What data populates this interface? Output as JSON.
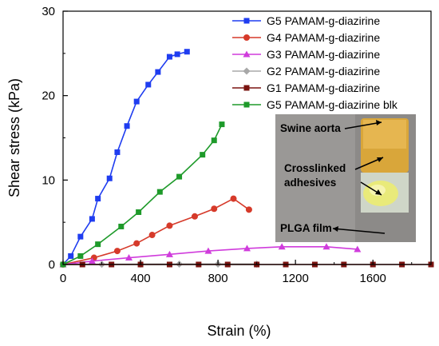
{
  "chart_data": {
    "type": "line",
    "xlabel": "Strain (%)",
    "ylabel": "Shear stress (kPa)",
    "xlim": [
      0,
      1900
    ],
    "ylim": [
      0,
      30
    ],
    "xticks": [
      0,
      400,
      800,
      1200,
      1600
    ],
    "yticks": [
      0,
      10,
      20,
      30
    ],
    "x_tick_labels": [
      "0",
      "400",
      "800",
      "1200",
      "1600"
    ],
    "y_tick_labels": [
      "0",
      "10",
      "20",
      "30"
    ],
    "grid": false,
    "legend_position": "top-right",
    "series": [
      {
        "name": "G5 PAMAM-g-diazirine",
        "color": "#1f3df0",
        "marker": "square",
        "x": [
          0,
          40,
          90,
          150,
          180,
          240,
          280,
          330,
          380,
          440,
          490,
          550,
          590,
          640
        ],
        "y": [
          0,
          1.0,
          3.3,
          5.4,
          7.8,
          10.2,
          13.3,
          16.4,
          19.3,
          21.3,
          22.8,
          24.6,
          24.9,
          25.2
        ]
      },
      {
        "name": "G4 PAMAM-g-diazirine",
        "color": "#d63a2a",
        "marker": "circle",
        "x": [
          0,
          160,
          280,
          380,
          460,
          550,
          680,
          780,
          880,
          960
        ],
        "y": [
          0,
          0.8,
          1.6,
          2.5,
          3.5,
          4.6,
          5.7,
          6.6,
          7.8,
          6.5
        ]
      },
      {
        "name": "G3 PAMAM-g-diazirine",
        "color": "#d03cdc",
        "marker": "triangle",
        "x": [
          0,
          150,
          340,
          550,
          750,
          950,
          1130,
          1360,
          1520
        ],
        "y": [
          0,
          0.4,
          0.8,
          1.2,
          1.6,
          1.9,
          2.1,
          2.1,
          1.8
        ]
      },
      {
        "name": "G2 PAMAM-g-diazirine",
        "color": "#a8a8a8",
        "marker": "diamond",
        "x": [
          0,
          200,
          400,
          600,
          800,
          1000
        ],
        "y": [
          0,
          0.02,
          0.04,
          0.05,
          0.05,
          0.05
        ]
      },
      {
        "name": "G1 PAMAM-g-diazirine",
        "color": "#7a1410",
        "marker": "square",
        "x": [
          0,
          100,
          250,
          400,
          550,
          700,
          850,
          1000,
          1150,
          1300,
          1450,
          1600,
          1750,
          1900
        ],
        "y": [
          0,
          0,
          0,
          0,
          0,
          0,
          0,
          0,
          0,
          0,
          0,
          0,
          0,
          0
        ]
      },
      {
        "name": "G5 PAMAM-g-diazirine blk",
        "color": "#1e9a2a",
        "marker": "square",
        "x": [
          0,
          90,
          180,
          300,
          390,
          500,
          600,
          720,
          780,
          820
        ],
        "y": [
          0,
          1.0,
          2.4,
          4.5,
          6.2,
          8.6,
          10.4,
          13.0,
          14.7,
          16.6
        ]
      }
    ]
  },
  "inset": {
    "labels": [
      "Swine aorta",
      "Crosslinked",
      "adhesives",
      "PLGA film"
    ]
  }
}
